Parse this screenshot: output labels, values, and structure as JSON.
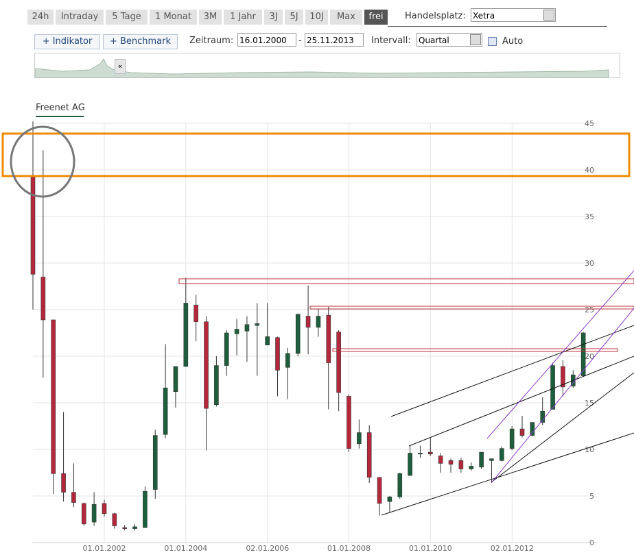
{
  "ui": {
    "tabs": [
      "24h",
      "Intraday",
      "5 Tage",
      "1 Monat",
      "3M",
      "1 Jahr",
      "3J",
      "5J",
      "10J",
      "Max",
      "frei"
    ],
    "market_label": "Handelsplatz:",
    "market": "Xetra",
    "buttons": [
      "+ Indikator",
      "+ Benchmark"
    ],
    "range_label": "Zeitraum:",
    "range_from": "16.01.2000",
    "range_sep": "-",
    "range_to": "25.11.2013",
    "interval_label": "Intervall:",
    "interval": "Quartal",
    "auto_label": "Auto",
    "collapse": "«"
  },
  "chart_data": {
    "type": "candlestick",
    "title": "Freenet AG",
    "x": [
      "01.04.2000",
      "01.07.2000",
      "01.10.2000",
      "01.01.2001",
      "01.04.2001",
      "01.07.2001",
      "01.10.2001",
      "01.01.2002",
      "01.04.2002",
      "01.07.2002",
      "01.10.2002",
      "01.01.2003",
      "01.04.2003",
      "01.07.2003",
      "01.10.2003",
      "01.01.2004",
      "01.04.2004",
      "01.07.2004",
      "01.10.2004",
      "01.01.2005",
      "01.04.2005",
      "01.07.2005",
      "01.10.2005",
      "01.01.2006",
      "01.04.2006",
      "01.07.2006",
      "01.10.2006",
      "01.01.2007",
      "01.04.2007",
      "01.07.2007",
      "01.10.2007",
      "01.01.2008",
      "01.04.2008",
      "01.07.2008",
      "01.10.2008",
      "01.01.2009",
      "01.04.2009",
      "01.07.2009",
      "01.10.2009",
      "01.01.2010",
      "01.04.2010",
      "01.07.2010",
      "01.10.2010",
      "01.01.2011",
      "01.04.2011",
      "01.07.2011",
      "01.10.2011",
      "01.01.2012",
      "01.04.2012",
      "01.07.2012",
      "01.10.2012",
      "01.01.2013",
      "01.04.2013",
      "01.07.2013",
      "01.10.2013"
    ],
    "open": [
      39.3,
      28.5,
      23.9,
      7.4,
      5.4,
      4.2,
      2.2,
      4.2,
      3.1,
      1.6,
      1.5,
      1.6,
      5.7,
      11.6,
      16.2,
      18.9,
      25.5,
      23.7,
      14.8,
      19.0,
      22.4,
      22.7,
      23.3,
      21.2,
      22.0,
      18.8,
      20.3,
      24.3,
      23.1,
      24.4,
      22.6,
      15.7,
      10.6,
      11.8,
      7.0,
      4.4,
      4.9,
      7.2,
      9.5,
      9.7,
      9.3,
      8.8,
      8.8,
      7.9,
      8.1,
      8.8,
      8.8,
      10.1,
      12.2,
      11.5,
      12.9,
      14.3,
      18.9,
      16.8,
      17.9
    ],
    "high": [
      45.2,
      42.1,
      23.9,
      14.0,
      8.5,
      4.3,
      5.4,
      4.6,
      3.2,
      1.9,
      2.0,
      6.0,
      12.1,
      21.3,
      18.9,
      28.4,
      26.6,
      24.3,
      20.0,
      22.8,
      24.0,
      24.3,
      25.7,
      25.7,
      22.1,
      20.9,
      24.6,
      27.6,
      25.1,
      25.3,
      22.8,
      15.9,
      13.2,
      12.6,
      7.0,
      5.0,
      7.5,
      10.4,
      10.4,
      11.2,
      9.6,
      9.0,
      9.1,
      8.6,
      9.7,
      9.0,
      10.3,
      12.5,
      13.6,
      12.9,
      15.6,
      19.3,
      19.6,
      18.5,
      22.6
    ],
    "low": [
      25.0,
      17.7,
      5.2,
      4.4,
      3.8,
      1.8,
      1.8,
      2.8,
      1.5,
      1.3,
      1.3,
      1.6,
      4.7,
      11.2,
      14.5,
      18.9,
      21.6,
      9.9,
      14.6,
      17.9,
      20.1,
      19.4,
      17.9,
      21.2,
      15.7,
      15.4,
      20.0,
      20.2,
      22.1,
      14.3,
      14.1,
      9.7,
      10.1,
      6.4,
      2.9,
      3.2,
      4.7,
      7.2,
      9.1,
      9.3,
      7.5,
      7.5,
      7.5,
      7.7,
      7.9,
      6.4,
      8.7,
      9.9,
      11.3,
      11.4,
      12.6,
      14.3,
      15.7,
      16.6,
      17.8
    ],
    "close": [
      28.8,
      23.9,
      7.4,
      5.4,
      4.3,
      2.0,
      4.1,
      3.1,
      1.8,
      1.5,
      1.7,
      5.5,
      11.5,
      16.6,
      18.9,
      25.7,
      23.7,
      14.4,
      19.0,
      22.5,
      22.9,
      23.4,
      23.5,
      22.1,
      18.5,
      20.3,
      24.5,
      23.1,
      24.3,
      19.3,
      16.1,
      10.1,
      11.8,
      7.0,
      4.2,
      4.9,
      7.4,
      9.6,
      9.6,
      9.5,
      8.5,
      8.4,
      7.9,
      8.2,
      9.7,
      9.0,
      10.1,
      12.2,
      11.5,
      12.9,
      14.1,
      19.0,
      16.7,
      18.0,
      22.5
    ],
    "up_color": "#1d5e3c",
    "down_color": "#b5283c",
    "xlim": [
      "01.04.2000",
      "01.01.2014"
    ],
    "xticks": [
      "01.01.2002",
      "01.01.2004",
      "02.01.2006",
      "01.01.2008",
      "01.01.2010",
      "02.01.2012"
    ],
    "ylim": [
      0,
      45
    ],
    "yticks": [
      0,
      5,
      10,
      15,
      20,
      25,
      30,
      35,
      40,
      45
    ],
    "grid": true
  }
}
